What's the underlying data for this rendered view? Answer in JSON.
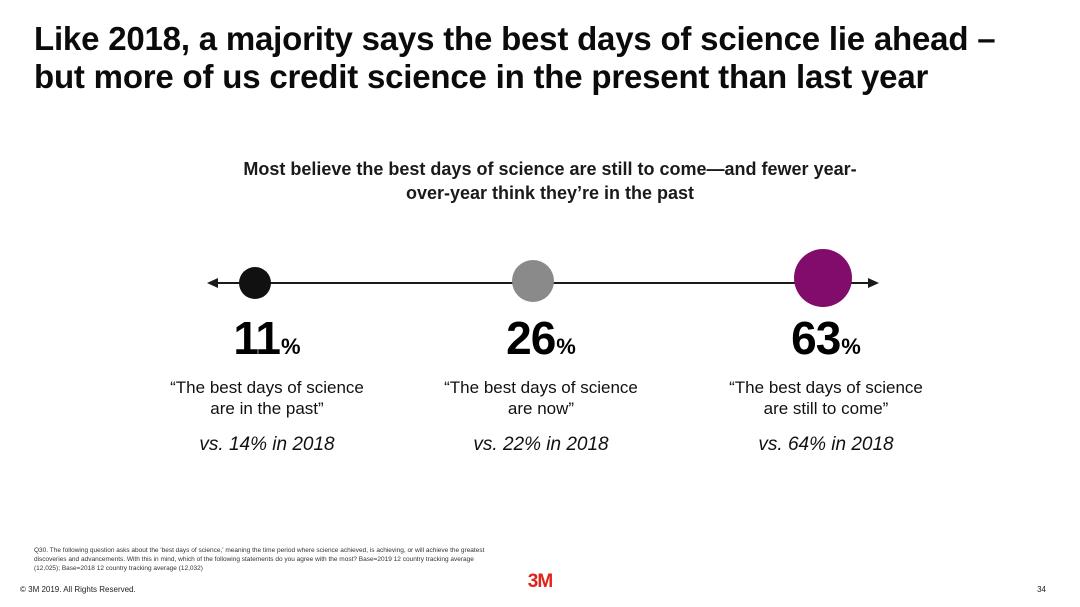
{
  "slide": {
    "title_line1": "Like 2018, a majority says the best days of science lie ahead –",
    "title_line2": "but more of us credit science in the present than last year",
    "subtitle_line1": "Most believe the best days of science are still to come—and fewer year-",
    "subtitle_line2": "over-year think they’re in the past"
  },
  "stats": [
    {
      "value": "11",
      "unit": "%",
      "quote_line1": "“The best days of science",
      "quote_line2": "are in the past”",
      "comparison": "vs. 14% in 2018",
      "marker_color": "#111111"
    },
    {
      "value": "26",
      "unit": "%",
      "quote_line1": "“The best days of science",
      "quote_line2": "are now”",
      "comparison": "vs. 22% in 2018",
      "marker_color": "#8a8a8a"
    },
    {
      "value": "63",
      "unit": "%",
      "quote_line1": "“The best days of science",
      "quote_line2": "are still to come”",
      "comparison": "vs. 64% in 2018",
      "marker_color": "#820c6b"
    }
  ],
  "footer": {
    "footnote_line1": "Q30. The following question asks about the 'best days of science,' meaning the time period where science achieved, is achieving, or will achieve the greatest",
    "footnote_line2": "discoveries and advancements. With this in mind, which of the following statements do you agree with the most? Base=2019 12 country tracking average",
    "footnote_line3": "(12,025); Base=2018 12 country tracking average (12,032)",
    "copyright": "© 3M 2019.   All Rights Reserved.",
    "logo_text": "3M",
    "page_number": "34"
  },
  "colors": {
    "line": "#1a1a1a",
    "brand_red": "#e2231a"
  }
}
